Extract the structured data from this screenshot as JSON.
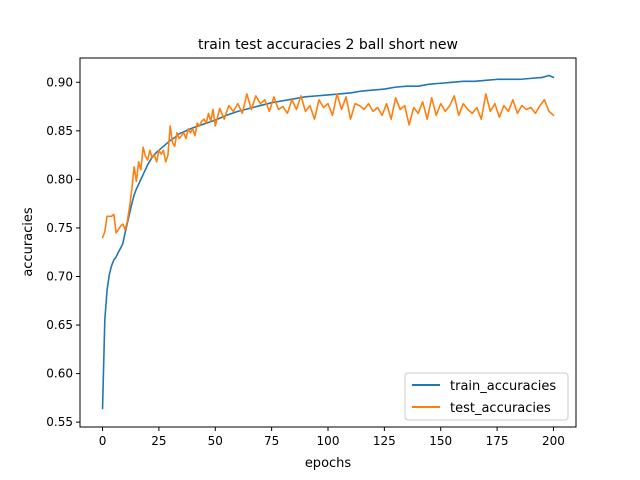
{
  "chart_data": {
    "type": "line",
    "title": "train test accuracies 2 ball short new",
    "xlabel": "epochs",
    "ylabel": "accuracies",
    "xlim": [
      -10,
      210
    ],
    "ylim": [
      0.545,
      0.925
    ],
    "xticks": [
      0,
      25,
      50,
      75,
      100,
      125,
      150,
      175,
      200
    ],
    "yticks": [
      0.55,
      0.6,
      0.65,
      0.7,
      0.75,
      0.8,
      0.85,
      0.9
    ],
    "ytick_labels": [
      "0.55",
      "0.60",
      "0.65",
      "0.70",
      "0.75",
      "0.80",
      "0.85",
      "0.90"
    ],
    "grid": false,
    "legend_position": "bottom-right",
    "series": [
      {
        "name": "train_accuracies",
        "color": "#1f77b4",
        "x": [
          0,
          1,
          2,
          3,
          4,
          5,
          6,
          7,
          8,
          9,
          10,
          11,
          12,
          13,
          14,
          15,
          16,
          17,
          18,
          19,
          20,
          22,
          24,
          26,
          28,
          30,
          32,
          34,
          36,
          38,
          40,
          45,
          50,
          55,
          60,
          65,
          70,
          75,
          80,
          85,
          90,
          95,
          100,
          105,
          110,
          115,
          120,
          125,
          130,
          135,
          140,
          145,
          150,
          155,
          160,
          165,
          170,
          175,
          180,
          185,
          190,
          195,
          198,
          200
        ],
        "y": [
          0.564,
          0.655,
          0.686,
          0.702,
          0.711,
          0.717,
          0.72,
          0.725,
          0.729,
          0.734,
          0.745,
          0.755,
          0.765,
          0.775,
          0.784,
          0.79,
          0.795,
          0.8,
          0.805,
          0.81,
          0.815,
          0.823,
          0.828,
          0.832,
          0.836,
          0.84,
          0.843,
          0.847,
          0.849,
          0.851,
          0.853,
          0.857,
          0.861,
          0.866,
          0.87,
          0.873,
          0.876,
          0.879,
          0.881,
          0.883,
          0.885,
          0.886,
          0.887,
          0.888,
          0.889,
          0.891,
          0.892,
          0.893,
          0.895,
          0.896,
          0.896,
          0.898,
          0.899,
          0.9,
          0.901,
          0.901,
          0.902,
          0.903,
          0.903,
          0.903,
          0.904,
          0.905,
          0.907,
          0.905
        ]
      },
      {
        "name": "test_accuracies",
        "color": "#ff7f0e",
        "x": [
          0,
          1,
          2,
          3,
          4,
          5,
          6,
          7,
          8,
          9,
          10,
          11,
          12,
          13,
          14,
          15,
          16,
          17,
          18,
          19,
          20,
          21,
          22,
          23,
          24,
          25,
          26,
          27,
          28,
          29,
          30,
          31,
          32,
          33,
          34,
          35,
          36,
          37,
          38,
          39,
          40,
          41,
          42,
          43,
          44,
          45,
          46,
          47,
          48,
          49,
          50,
          52,
          54,
          56,
          58,
          60,
          62,
          64,
          66,
          68,
          70,
          72,
          74,
          76,
          78,
          80,
          82,
          84,
          86,
          88,
          90,
          92,
          94,
          96,
          98,
          100,
          102,
          104,
          106,
          108,
          110,
          112,
          114,
          116,
          118,
          120,
          122,
          124,
          126,
          128,
          130,
          132,
          134,
          136,
          138,
          140,
          142,
          144,
          146,
          148,
          150,
          152,
          154,
          156,
          158,
          160,
          162,
          164,
          166,
          168,
          170,
          172,
          174,
          176,
          178,
          180,
          182,
          184,
          186,
          188,
          190,
          192,
          194,
          196,
          198,
          200
        ],
        "y": [
          0.74,
          0.746,
          0.762,
          0.762,
          0.762,
          0.764,
          0.745,
          0.748,
          0.752,
          0.754,
          0.748,
          0.757,
          0.772,
          0.79,
          0.813,
          0.798,
          0.818,
          0.81,
          0.833,
          0.824,
          0.82,
          0.83,
          0.822,
          0.825,
          0.818,
          0.83,
          0.826,
          0.83,
          0.818,
          0.825,
          0.855,
          0.838,
          0.834,
          0.848,
          0.842,
          0.845,
          0.848,
          0.842,
          0.852,
          0.848,
          0.852,
          0.845,
          0.858,
          0.855,
          0.86,
          0.862,
          0.858,
          0.868,
          0.86,
          0.872,
          0.855,
          0.873,
          0.862,
          0.876,
          0.87,
          0.878,
          0.868,
          0.888,
          0.872,
          0.886,
          0.878,
          0.882,
          0.87,
          0.885,
          0.872,
          0.875,
          0.868,
          0.882,
          0.872,
          0.886,
          0.87,
          0.876,
          0.862,
          0.882,
          0.874,
          0.878,
          0.866,
          0.888,
          0.872,
          0.885,
          0.862,
          0.878,
          0.876,
          0.872,
          0.878,
          0.87,
          0.874,
          0.866,
          0.878,
          0.862,
          0.884,
          0.872,
          0.876,
          0.856,
          0.874,
          0.868,
          0.88,
          0.862,
          0.884,
          0.866,
          0.878,
          0.87,
          0.876,
          0.886,
          0.866,
          0.878,
          0.872,
          0.868,
          0.874,
          0.862,
          0.888,
          0.87,
          0.878,
          0.864,
          0.876,
          0.87,
          0.882,
          0.868,
          0.876,
          0.872,
          0.874,
          0.868,
          0.876,
          0.882,
          0.87,
          0.866
        ]
      }
    ]
  }
}
